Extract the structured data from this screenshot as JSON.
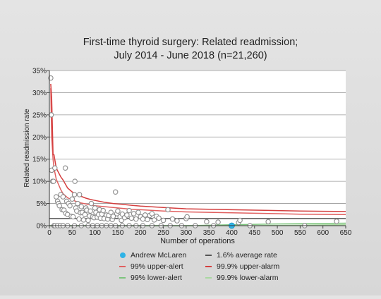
{
  "chart_data": {
    "type": "scatter",
    "title": "First-time thyroid surgery: Related readmission;",
    "subtitle": "July 2014 - June 2018 (n=21,260)",
    "xlabel": "Number of operations",
    "ylabel": "Related readmission rate",
    "xlim": [
      0,
      650
    ],
    "ylim": [
      0,
      35
    ],
    "x_ticks": [
      "0",
      "50",
      "100",
      "150",
      "200",
      "250",
      "300",
      "350",
      "400",
      "450",
      "500",
      "550",
      "600",
      "650"
    ],
    "y_ticks": [
      "0%",
      "5%",
      "10%",
      "15%",
      "20%",
      "25%",
      "30%",
      "35%"
    ],
    "grid": "horizontal",
    "legend_position": "bottom",
    "average_rate": 1.6,
    "highlight": {
      "name": "Andrew McLaren",
      "x": 400,
      "y": 0,
      "color": "#2fb3e6"
    },
    "surgeons": [
      [
        3,
        33.3
      ],
      [
        4,
        25
      ],
      [
        5,
        12.5
      ],
      [
        7,
        10
      ],
      [
        9,
        10
      ],
      [
        10,
        0
      ],
      [
        12,
        13
      ],
      [
        15,
        6.5
      ],
      [
        18,
        5.5
      ],
      [
        20,
        5
      ],
      [
        22,
        4.5
      ],
      [
        25,
        7
      ],
      [
        28,
        3.6
      ],
      [
        30,
        6.5
      ],
      [
        32,
        3.5
      ],
      [
        35,
        13
      ],
      [
        36,
        2.8
      ],
      [
        38,
        5.5
      ],
      [
        40,
        2.5
      ],
      [
        42,
        5
      ],
      [
        45,
        4.5
      ],
      [
        48,
        2.1
      ],
      [
        50,
        6
      ],
      [
        52,
        2
      ],
      [
        55,
        7
      ],
      [
        56,
        10
      ],
      [
        58,
        4
      ],
      [
        60,
        3.3
      ],
      [
        62,
        5
      ],
      [
        65,
        1.5
      ],
      [
        66,
        7
      ],
      [
        68,
        2.9
      ],
      [
        70,
        4.3
      ],
      [
        72,
        3
      ],
      [
        75,
        1.3
      ],
      [
        78,
        2.5
      ],
      [
        80,
        4
      ],
      [
        82,
        3.5
      ],
      [
        85,
        1.2
      ],
      [
        88,
        2.2
      ],
      [
        90,
        3.3
      ],
      [
        92,
        5
      ],
      [
        95,
        2
      ],
      [
        98,
        1.8
      ],
      [
        100,
        4
      ],
      [
        102,
        3
      ],
      [
        105,
        1.9
      ],
      [
        108,
        2.5
      ],
      [
        110,
        3.6
      ],
      [
        112,
        1.7
      ],
      [
        115,
        2.6
      ],
      [
        118,
        3.4
      ],
      [
        120,
        1.6
      ],
      [
        125,
        2.4
      ],
      [
        128,
        1.5
      ],
      [
        130,
        2.3
      ],
      [
        135,
        3
      ],
      [
        138,
        1.4
      ],
      [
        140,
        2.1
      ],
      [
        145,
        7.6
      ],
      [
        148,
        2.7
      ],
      [
        150,
        3.3
      ],
      [
        155,
        2
      ],
      [
        158,
        1.2
      ],
      [
        160,
        2.6
      ],
      [
        165,
        1.8
      ],
      [
        170,
        2.4
      ],
      [
        175,
        3.4
      ],
      [
        180,
        1.7
      ],
      [
        185,
        2.7
      ],
      [
        190,
        1.5
      ],
      [
        195,
        3
      ],
      [
        200,
        2
      ],
      [
        205,
        1.5
      ],
      [
        210,
        2.4
      ],
      [
        215,
        1.4
      ],
      [
        220,
        2.3
      ],
      [
        225,
        2.7
      ],
      [
        230,
        1.3
      ],
      [
        235,
        2.1
      ],
      [
        240,
        1.7
      ],
      [
        250,
        1.2
      ],
      [
        260,
        3.6
      ],
      [
        270,
        1.5
      ],
      [
        280,
        1.1
      ],
      [
        300,
        1.6
      ],
      [
        302,
        2
      ],
      [
        345,
        0.9
      ],
      [
        370,
        0.8
      ],
      [
        415,
        0.7
      ],
      [
        418,
        1.2
      ],
      [
        480,
        0.9
      ],
      [
        630,
        1
      ],
      [
        12,
        0
      ],
      [
        18,
        0
      ],
      [
        24,
        0
      ],
      [
        30,
        0
      ],
      [
        40,
        0
      ],
      [
        55,
        0
      ],
      [
        70,
        0
      ],
      [
        85,
        0
      ],
      [
        95,
        0
      ],
      [
        105,
        0
      ],
      [
        115,
        0
      ],
      [
        125,
        0
      ],
      [
        135,
        0
      ],
      [
        145,
        0
      ],
      [
        160,
        0
      ],
      [
        175,
        0
      ],
      [
        190,
        0
      ],
      [
        205,
        0
      ],
      [
        225,
        0
      ],
      [
        245,
        0
      ],
      [
        265,
        0
      ],
      [
        290,
        0
      ],
      [
        320,
        0
      ],
      [
        360,
        0
      ],
      [
        440,
        0
      ],
      [
        560,
        0
      ]
    ],
    "series": [
      {
        "name": "1.6% average rate",
        "color": "#555555",
        "x": [
          0,
          650
        ],
        "y": [
          1.6,
          1.6
        ]
      },
      {
        "name": "99% upper-alert",
        "color": "#e06060",
        "x": [
          3,
          5,
          8,
          10,
          15,
          20,
          25,
          30,
          40,
          50,
          60,
          70,
          80,
          90,
          100,
          120,
          140,
          160,
          180,
          200,
          250,
          300,
          350,
          400,
          450,
          500,
          550,
          600,
          650
        ],
        "y": [
          31,
          20,
          15,
          13,
          10.5,
          9.3,
          8.1,
          7.2,
          6.3,
          5.8,
          5.4,
          5.1,
          4.9,
          4.7,
          4.5,
          4.3,
          4.1,
          3.9,
          3.7,
          3.6,
          3.3,
          3.1,
          3,
          2.9,
          2.8,
          2.7,
          2.6,
          2.55,
          2.5
        ]
      },
      {
        "name": "99.9% upper-alarm",
        "color": "#d43f3f",
        "x": [
          3,
          5,
          8,
          10,
          15,
          20,
          25,
          30,
          40,
          50,
          60,
          70,
          80,
          90,
          100,
          120,
          140,
          160,
          180,
          200,
          250,
          300,
          350,
          400,
          450,
          500,
          550,
          600,
          650
        ],
        "y": [
          32,
          29,
          16,
          16,
          13,
          12,
          11,
          10.3,
          8.5,
          7.6,
          7,
          6.6,
          6.2,
          5.9,
          5.7,
          5.3,
          5,
          4.8,
          4.6,
          4.4,
          4.1,
          3.8,
          3.7,
          3.6,
          3.5,
          3.4,
          3.3,
          3.25,
          3.2
        ]
      },
      {
        "name": "99% lower-alert",
        "color": "#7cc47c",
        "x": [
          0,
          300,
          350,
          400,
          450,
          500,
          550,
          600,
          650
        ],
        "y": [
          0,
          0,
          0.1,
          0.2,
          0.3,
          0.38,
          0.45,
          0.5,
          0.55
        ]
      },
      {
        "name": "99.9% lower-alarm",
        "color": "#a8d8a0",
        "x": [
          0,
          450,
          500,
          550,
          600,
          650
        ],
        "y": [
          0,
          0,
          0.05,
          0.12,
          0.18,
          0.22
        ]
      }
    ]
  },
  "legend": [
    {
      "label": "Andrew McLaren",
      "kind": "dot",
      "color": "#2fb3e6"
    },
    {
      "label": "1.6% average rate",
      "kind": "line",
      "color": "#555555"
    },
    {
      "label": "99% upper-alert",
      "kind": "line",
      "color": "#e06060"
    },
    {
      "label": "99.9% upper-alarm",
      "kind": "line",
      "color": "#d43f3f"
    },
    {
      "label": "99% lower-alert",
      "kind": "line",
      "color": "#7cc47c"
    },
    {
      "label": "99.9% lower-alarm",
      "kind": "line",
      "color": "#a8d8a0"
    }
  ]
}
